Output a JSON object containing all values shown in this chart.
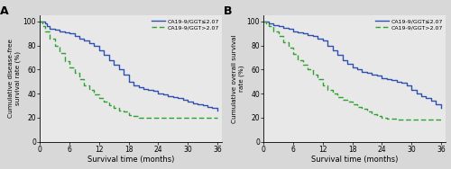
{
  "panel_A": {
    "title": "A",
    "ylabel": "Cumulative disease-free\nsurvival rate (%)",
    "xlabel": "Survival time (months)",
    "xlim": [
      0,
      37
    ],
    "ylim": [
      0,
      105
    ],
    "xticks": [
      0,
      6,
      12,
      18,
      24,
      30,
      36
    ],
    "yticks": [
      0,
      20,
      40,
      60,
      80,
      100
    ],
    "blue_x": [
      0,
      0.5,
      1,
      1.5,
      2,
      3,
      4,
      5,
      6,
      7,
      8,
      9,
      10,
      11,
      12,
      13,
      14,
      15,
      16,
      17,
      18,
      19,
      20,
      21,
      22,
      23,
      24,
      25,
      26,
      27,
      28,
      29,
      30,
      31,
      32,
      33,
      34,
      35,
      36
    ],
    "blue_y": [
      100,
      100,
      98,
      96,
      94,
      93,
      92,
      91,
      90,
      88,
      86,
      84,
      82,
      80,
      76,
      72,
      68,
      64,
      60,
      56,
      50,
      47,
      45,
      44,
      43,
      42,
      40,
      39,
      38,
      37,
      36,
      35,
      33,
      32,
      31,
      30,
      29,
      28,
      26
    ],
    "green_x": [
      0,
      0.5,
      1,
      2,
      3,
      4,
      5,
      6,
      7,
      8,
      9,
      10,
      11,
      12,
      13,
      14,
      15,
      16,
      17,
      18,
      19,
      20,
      21,
      22,
      23,
      24,
      25,
      26,
      27,
      28,
      36
    ],
    "green_y": [
      100,
      96,
      92,
      86,
      80,
      74,
      67,
      62,
      57,
      52,
      47,
      43,
      39,
      36,
      33,
      30,
      28,
      26,
      25,
      22,
      21,
      20,
      20,
      20,
      20,
      20,
      20,
      20,
      20,
      20,
      20
    ],
    "legend1": "CA19-9/GGT≤2.07",
    "legend2": "CA19-9/GGT>2.07",
    "blue_color": "#3050b0",
    "green_color": "#30a030"
  },
  "panel_B": {
    "title": "B",
    "ylabel": "Cumulative overall survival\nrate (%)",
    "xlabel": "Survival time (months)",
    "xlim": [
      0,
      37
    ],
    "ylim": [
      0,
      105
    ],
    "xticks": [
      0,
      6,
      12,
      18,
      24,
      30,
      36
    ],
    "yticks": [
      0,
      20,
      40,
      60,
      80,
      100
    ],
    "blue_x": [
      0,
      0.5,
      1,
      2,
      3,
      4,
      5,
      6,
      7,
      8,
      9,
      10,
      11,
      12,
      13,
      14,
      15,
      16,
      17,
      18,
      19,
      20,
      21,
      22,
      23,
      24,
      25,
      26,
      27,
      28,
      29,
      30,
      31,
      32,
      33,
      34,
      35,
      36
    ],
    "blue_y": [
      100,
      100,
      98,
      97,
      96,
      95,
      94,
      92,
      91,
      90,
      89,
      88,
      86,
      84,
      80,
      76,
      72,
      68,
      65,
      62,
      60,
      58,
      57,
      56,
      55,
      53,
      52,
      51,
      50,
      49,
      47,
      43,
      40,
      38,
      36,
      34,
      31,
      28
    ],
    "green_x": [
      0,
      0.5,
      1,
      2,
      3,
      4,
      5,
      6,
      7,
      8,
      9,
      10,
      11,
      12,
      13,
      14,
      15,
      16,
      17,
      18,
      19,
      20,
      21,
      22,
      23,
      24,
      25,
      26,
      27,
      28,
      36
    ],
    "green_y": [
      100,
      98,
      96,
      92,
      88,
      83,
      78,
      73,
      68,
      64,
      60,
      56,
      52,
      47,
      43,
      40,
      37,
      35,
      33,
      31,
      29,
      27,
      25,
      23,
      21,
      20,
      19,
      19,
      18,
      18,
      18
    ],
    "legend1": "CA19-9/GGT≤2.07",
    "legend2": "CA19-9/GGT>2.07",
    "blue_color": "#3050b0",
    "green_color": "#30a030"
  },
  "bg_color": "#e8e8e8",
  "fig_bg": "#d8d8d8"
}
